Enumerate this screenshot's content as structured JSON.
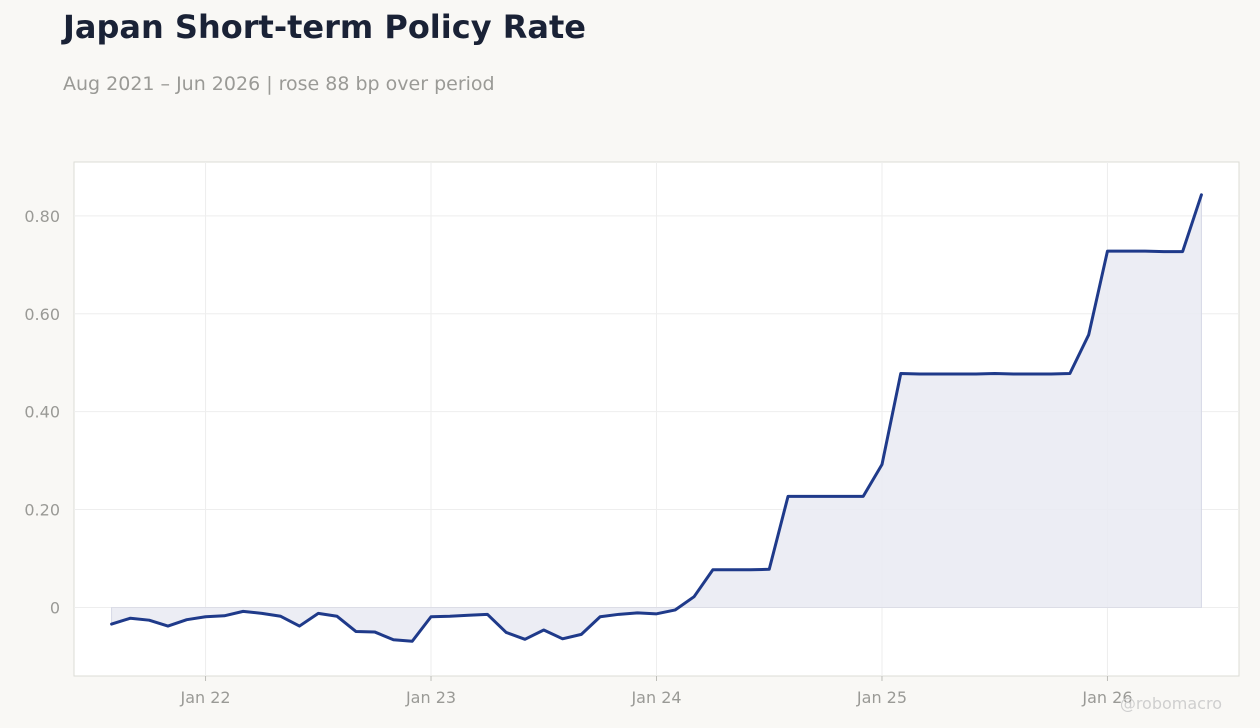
{
  "header": {
    "title": "Japan Short-term Policy Rate",
    "subtitle": "Aug 2021 – Jun 2026 | rose 88 bp over period"
  },
  "watermark": "@robomacro",
  "colors": {
    "background": "#f9f8f5",
    "plot_background": "#ffffff",
    "line": "#1f3a8a",
    "fill": "#e9eaf2",
    "grid": "#eeeeee",
    "axis_text": "#9a9a96",
    "title": "#1a2236"
  },
  "chart_data": {
    "type": "area",
    "title": "Japan Short-term Policy Rate",
    "subtitle": "Aug 2021 – Jun 2026 | rose 88 bp over period",
    "xlabel": "",
    "ylabel": "",
    "x_ticks": [
      "Jan 22",
      "Jan 23",
      "Jan 24",
      "Jan 25",
      "Jan 26"
    ],
    "x_tick_dates": [
      "2022-01",
      "2023-01",
      "2024-01",
      "2025-01",
      "2026-01"
    ],
    "y_ticks": [
      0,
      0.2,
      0.4,
      0.6,
      0.8
    ],
    "y_tick_labels": [
      "0",
      "0.20",
      "0.40",
      "0.60",
      "0.80"
    ],
    "xlim": [
      "2021-06",
      "2026-08"
    ],
    "ylim": [
      -0.14,
      0.91
    ],
    "grid": true,
    "legend": "none",
    "series": [
      {
        "x": [
          "2021-08",
          "2021-09",
          "2021-10",
          "2021-11",
          "2021-12",
          "2022-01",
          "2022-02",
          "2022-03",
          "2022-04",
          "2022-05",
          "2022-06",
          "2022-07",
          "2022-08",
          "2022-09",
          "2022-10",
          "2022-11",
          "2022-12",
          "2023-01",
          "2023-02",
          "2023-03",
          "2023-04",
          "2023-05",
          "2023-06",
          "2023-07",
          "2023-08",
          "2023-09",
          "2023-10",
          "2023-11",
          "2023-12",
          "2024-01",
          "2024-02",
          "2024-03",
          "2024-04",
          "2024-05",
          "2024-06",
          "2024-07",
          "2024-08",
          "2024-09",
          "2024-10",
          "2024-11",
          "2024-12",
          "2025-01",
          "2025-02",
          "2025-03",
          "2025-04",
          "2025-05",
          "2025-06",
          "2025-07",
          "2025-08",
          "2025-09",
          "2025-10",
          "2025-11",
          "2025-12",
          "2026-01",
          "2026-02",
          "2026-03",
          "2026-04",
          "2026-05",
          "2026-06"
        ],
        "values": [
          -0.034,
          -0.022,
          -0.026,
          -0.038,
          -0.025,
          -0.019,
          -0.017,
          -0.008,
          -0.012,
          -0.018,
          -0.038,
          -0.012,
          -0.018,
          -0.049,
          -0.05,
          -0.066,
          -0.069,
          -0.019,
          -0.018,
          -0.016,
          -0.014,
          -0.051,
          -0.065,
          -0.046,
          -0.064,
          -0.055,
          -0.019,
          -0.014,
          -0.011,
          -0.013,
          -0.005,
          0.022,
          0.077,
          0.077,
          0.077,
          0.078,
          0.227,
          0.227,
          0.227,
          0.227,
          0.227,
          0.292,
          0.478,
          0.477,
          0.477,
          0.477,
          0.477,
          0.478,
          0.477,
          0.477,
          0.477,
          0.478,
          0.557,
          0.728,
          0.728,
          0.728,
          0.727,
          0.727,
          0.843
        ]
      }
    ]
  }
}
